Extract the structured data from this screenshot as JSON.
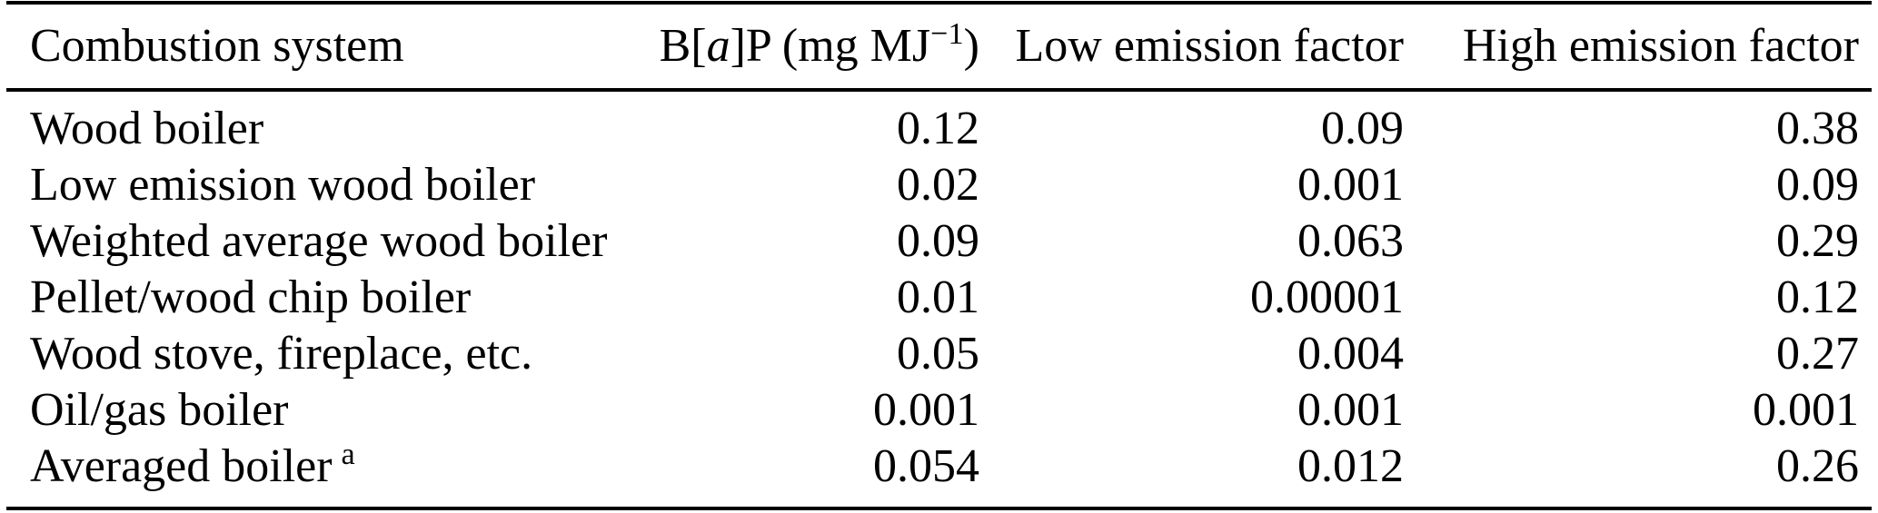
{
  "table": {
    "columns": {
      "system": "Combustion system",
      "bap_prefix": "B[",
      "bap_italic": "a",
      "bap_mid": "]P (mg MJ",
      "bap_sup": "−1",
      "bap_suffix": ")",
      "low": "Low emission factor",
      "high": "High emission factor"
    },
    "rows": [
      {
        "system": "Wood boiler",
        "bap": "0.12",
        "low": "0.09",
        "high": "0.38"
      },
      {
        "system": "Low emission wood boiler",
        "bap": "0.02",
        "low": "0.001",
        "high": "0.09"
      },
      {
        "system": "Weighted average wood boiler",
        "bap": "0.09",
        "low": "0.063",
        "high": "0.29"
      },
      {
        "system": "Pellet/wood chip boiler",
        "bap": "0.01",
        "low": "0.00001",
        "high": "0.12"
      },
      {
        "system": "Wood stove, fireplace, etc.",
        "bap": "0.05",
        "low": "0.004",
        "high": "0.27"
      },
      {
        "system": "Oil/gas boiler",
        "bap": "0.001",
        "low": "0.001",
        "high": "0.001"
      },
      {
        "system": "Averaged boiler",
        "note_mark": "a",
        "bap": "0.054",
        "low": "0.012",
        "high": "0.26"
      }
    ],
    "colors": {
      "text": "#000000",
      "rule": "#000000",
      "background": "#ffffff"
    }
  }
}
